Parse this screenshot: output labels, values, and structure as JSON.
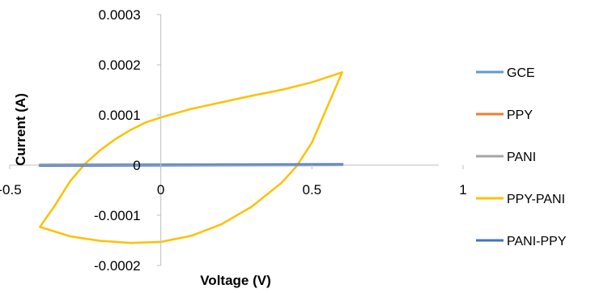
{
  "chart_data": {
    "type": "line",
    "title": "",
    "xlabel": "Voltage (V)",
    "ylabel": "Current (A)",
    "xlim": [
      -0.5,
      1
    ],
    "ylim": [
      -0.0002,
      0.0003
    ],
    "x_ticks": [
      {
        "value": -0.5,
        "label": "-0.5"
      },
      {
        "value": 0,
        "label": "0"
      },
      {
        "value": 0.5,
        "label": "0.5"
      },
      {
        "value": 1,
        "label": "1"
      }
    ],
    "y_ticks": [
      {
        "value": 0.0003,
        "label": "0.0003"
      },
      {
        "value": 0.0002,
        "label": "0.0002"
      },
      {
        "value": 0.0001,
        "label": "0.0001"
      },
      {
        "value": 0,
        "label": "0"
      },
      {
        "value": -0.0001,
        "label": "-0.0001"
      },
      {
        "value": -0.0002,
        "label": "-0.0002"
      }
    ],
    "grid": false,
    "legend_position": "right",
    "series": [
      {
        "name": "GCE",
        "color": "#5B9BD5",
        "x": [
          -0.4,
          0.6,
          -0.4
        ],
        "y": [
          5e-07,
          1.2e-06,
          5e-07
        ]
      },
      {
        "name": "PPY",
        "color": "#ED7D31",
        "x": [
          -0.4,
          0.6,
          -0.4
        ],
        "y": [
          6e-07,
          1.4e-06,
          6e-07
        ]
      },
      {
        "name": "PANI",
        "color": "#A5A5A5",
        "x": [
          -0.4,
          0.6,
          -0.4
        ],
        "y": [
          7e-07,
          1.6e-06,
          7e-07
        ]
      },
      {
        "name": "PPY-PANI",
        "color": "#FFC000",
        "x": [
          0.6,
          0.5,
          0.4,
          0.3,
          0.2,
          0.1,
          0.0,
          -0.05,
          -0.1,
          -0.15,
          -0.2,
          -0.25,
          -0.3,
          -0.35,
          -0.4,
          -0.3,
          -0.2,
          -0.1,
          0.0,
          0.1,
          0.2,
          0.3,
          0.4,
          0.45,
          0.5,
          0.55,
          0.6
        ],
        "y": [
          0.000185,
          0.000165,
          0.00015,
          0.000138,
          0.000125,
          0.000112,
          9.5e-05,
          8.5e-05,
          7e-05,
          5.2e-05,
          3e-05,
          3e-06,
          -3.2e-05,
          -8e-05,
          -0.000123,
          -0.000142,
          -0.000151,
          -0.000155,
          -0.000153,
          -0.000141,
          -0.000118,
          -8.3e-05,
          -3.5e-05,
          -1.5e-06,
          4.5e-05,
          0.000115,
          0.000185
        ]
      },
      {
        "name": "PANI-PPY",
        "color": "#4472C4",
        "x": [
          -0.4,
          0.6,
          -0.4
        ],
        "y": [
          -5e-07,
          1e-06,
          -5e-07
        ]
      }
    ]
  }
}
